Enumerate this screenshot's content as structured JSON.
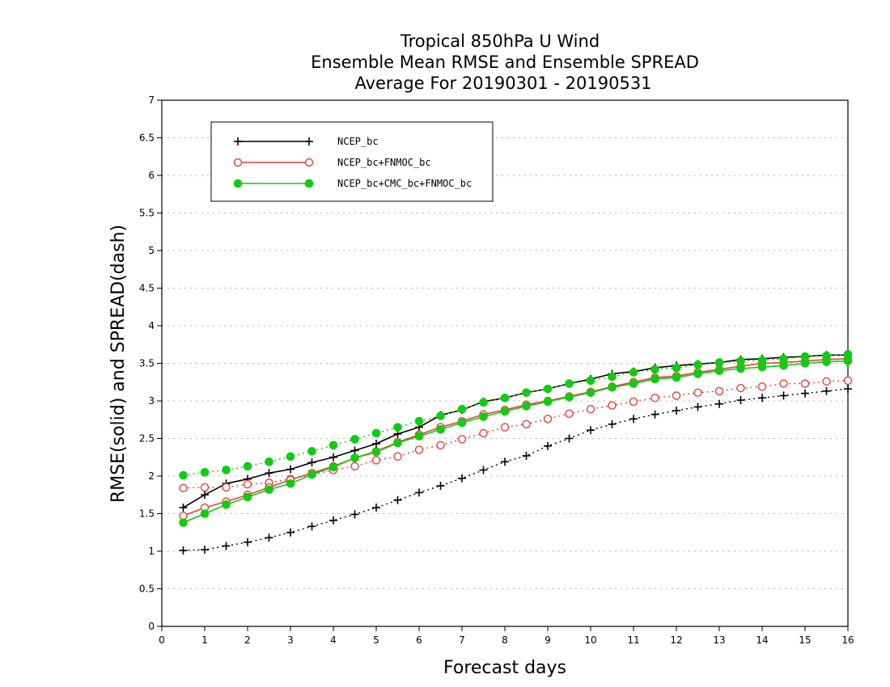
{
  "chart_data": {
    "type": "line",
    "title": [
      "Tropical 850hPa U Wind",
      "Ensemble Mean RMSE and Ensemble SPREAD",
      "Average For 20190301 - 20190531"
    ],
    "xlabel": "Forecast days",
    "ylabel": "RMSE(solid) and SPREAD(dash)",
    "xlim": [
      0,
      16
    ],
    "ylim": [
      0,
      7
    ],
    "xticks": [
      0,
      1,
      2,
      3,
      4,
      5,
      6,
      7,
      8,
      9,
      10,
      11,
      12,
      13,
      14,
      15,
      16
    ],
    "yticks": [
      0,
      0.5,
      1,
      1.5,
      2,
      2.5,
      3,
      3.5,
      4,
      4.5,
      5,
      5.5,
      6,
      6.5,
      7
    ],
    "grid": "horizontal dotted",
    "legend_position": "top-left",
    "x": [
      0.5,
      1,
      1.5,
      2,
      2.5,
      3,
      3.5,
      4,
      4.5,
      5,
      5.5,
      6,
      6.5,
      7,
      7.5,
      8,
      8.5,
      9,
      9.5,
      10,
      10.5,
      11,
      11.5,
      12,
      12.5,
      13,
      13.5,
      14,
      14.5,
      15,
      15.5,
      16
    ],
    "series": [
      {
        "name": "NCEP_bc",
        "color": "#000000",
        "marker": "plus",
        "rmse": [
          1.58,
          1.75,
          1.9,
          1.96,
          2.04,
          2.09,
          2.18,
          2.25,
          2.34,
          2.43,
          2.56,
          2.65,
          2.81,
          2.88,
          2.99,
          3.04,
          3.11,
          3.16,
          3.23,
          3.29,
          3.36,
          3.39,
          3.44,
          3.47,
          3.49,
          3.51,
          3.55,
          3.56,
          3.58,
          3.59,
          3.61,
          3.61
        ],
        "spread": [
          1.01,
          1.02,
          1.07,
          1.12,
          1.18,
          1.25,
          1.33,
          1.41,
          1.49,
          1.58,
          1.68,
          1.78,
          1.87,
          1.97,
          2.08,
          2.19,
          2.27,
          2.4,
          2.5,
          2.61,
          2.69,
          2.76,
          2.82,
          2.87,
          2.92,
          2.96,
          3.01,
          3.04,
          3.07,
          3.1,
          3.13,
          3.16
        ]
      },
      {
        "name": "NCEP_bc+FNMOC_bc",
        "color": "#e8413c",
        "marker": "open-circle",
        "rmse": [
          1.47,
          1.58,
          1.66,
          1.75,
          1.85,
          1.95,
          2.04,
          2.13,
          2.24,
          2.33,
          2.45,
          2.55,
          2.65,
          2.73,
          2.82,
          2.88,
          2.95,
          3.0,
          3.06,
          3.12,
          3.19,
          3.25,
          3.31,
          3.33,
          3.38,
          3.42,
          3.46,
          3.5,
          3.51,
          3.53,
          3.55,
          3.56
        ],
        "spread": [
          1.84,
          1.85,
          1.85,
          1.89,
          1.91,
          1.96,
          2.02,
          2.08,
          2.13,
          2.21,
          2.26,
          2.35,
          2.41,
          2.49,
          2.57,
          2.65,
          2.69,
          2.76,
          2.83,
          2.89,
          2.94,
          2.99,
          3.04,
          3.07,
          3.11,
          3.13,
          3.17,
          3.19,
          3.23,
          3.23,
          3.26,
          3.27
        ]
      },
      {
        "name": "NCEP_bc+CMC_bc+FNMOC_bc",
        "color": "#11cc11",
        "marker": "filled-circle",
        "rmse": [
          1.38,
          1.5,
          1.62,
          1.72,
          1.82,
          1.9,
          2.02,
          2.12,
          2.24,
          2.32,
          2.44,
          2.53,
          2.62,
          2.71,
          2.79,
          2.86,
          2.93,
          2.99,
          3.05,
          3.11,
          3.18,
          3.23,
          3.29,
          3.31,
          3.36,
          3.4,
          3.43,
          3.45,
          3.47,
          3.5,
          3.52,
          3.53
        ],
        "spread": [
          2.01,
          2.05,
          2.08,
          2.13,
          2.19,
          2.26,
          2.33,
          2.41,
          2.49,
          2.57,
          2.65,
          2.73,
          2.8,
          2.89,
          2.98,
          3.04,
          3.11,
          3.16,
          3.23,
          3.27,
          3.32,
          3.38,
          3.42,
          3.44,
          3.48,
          3.51,
          3.53,
          3.54,
          3.56,
          3.59,
          3.6,
          3.62
        ]
      }
    ]
  }
}
